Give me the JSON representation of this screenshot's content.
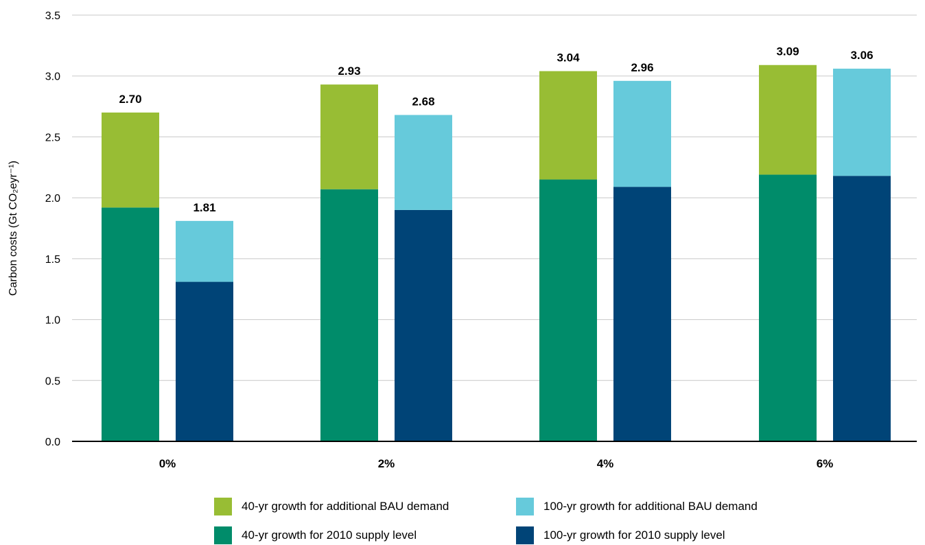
{
  "chart_data": {
    "type": "bar",
    "stacked": true,
    "grouped": true,
    "categories": [
      "0%",
      "2%",
      "4%",
      "6%"
    ],
    "ylabel": "Carbon costs (Gt CO₂eyr⁻¹)",
    "ylim": [
      0,
      3.5
    ],
    "yticks": [
      "0.0",
      "0.5",
      "1.0",
      "1.5",
      "2.0",
      "2.5",
      "3.0",
      "3.5"
    ],
    "grid": true,
    "legend_position": "bottom",
    "groups": [
      {
        "stack": "40-yr",
        "series": [
          {
            "name": "40-yr growth for 2010 supply level",
            "color": "#008c6a",
            "values": [
              1.92,
              2.07,
              2.15,
              2.19
            ]
          },
          {
            "name": "40-yr growth for additional BAU demand",
            "color": "#98bd34",
            "values": [
              0.78,
              0.86,
              0.89,
              0.9
            ]
          }
        ],
        "totals": [
          "2.70",
          "2.93",
          "3.04",
          "3.09"
        ]
      },
      {
        "stack": "100-yr",
        "series": [
          {
            "name": "100-yr growth for 2010 supply level",
            "color": "#004477",
            "values": [
              1.31,
              1.9,
              2.09,
              2.18
            ]
          },
          {
            "name": "100-yr growth for additional BAU demand",
            "color": "#66cadb",
            "values": [
              0.5,
              0.78,
              0.87,
              0.88
            ]
          }
        ],
        "totals": [
          "1.81",
          "2.68",
          "2.96",
          "3.06"
        ]
      }
    ]
  },
  "legend": [
    {
      "label": "40-yr growth for additional BAU demand",
      "color": "#98bd34"
    },
    {
      "label": "100-yr growth for additional BAU demand",
      "color": "#66cadb"
    },
    {
      "label": "40-yr growth for 2010 supply level",
      "color": "#008c6a"
    },
    {
      "label": "100-yr growth for 2010 supply level",
      "color": "#004477"
    }
  ]
}
